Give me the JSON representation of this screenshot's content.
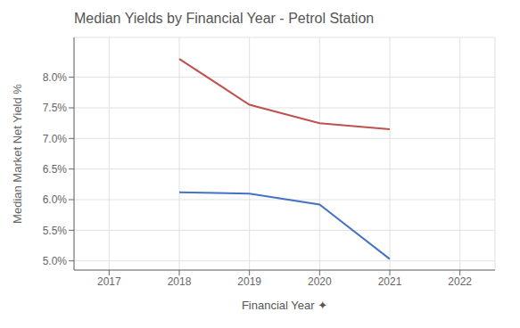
{
  "chart_data": {
    "type": "line",
    "title": "Median Yields by Financial Year - Petrol Station",
    "xlabel": "Financial Year ✦",
    "ylabel": "Median Market Net Yield %",
    "x": [
      2018,
      2019,
      2020,
      2021
    ],
    "series": [
      {
        "color": "#c0504d",
        "values": [
          8.3,
          7.55,
          7.25,
          7.15
        ]
      },
      {
        "color": "#4472c4",
        "values": [
          6.12,
          6.1,
          5.92,
          5.03
        ]
      }
    ],
    "xlim": [
      2016.5,
      2022.5
    ],
    "xticks": [
      2017,
      2018,
      2019,
      2020,
      2021,
      2022
    ],
    "ylim": [
      4.85,
      8.65
    ],
    "yticks": [
      {
        "value": 5.0,
        "label": "5.0%"
      },
      {
        "value": 5.5,
        "label": "5.5%"
      },
      {
        "value": 6.0,
        "label": "6.0%"
      },
      {
        "value": 6.5,
        "label": "6.5%"
      },
      {
        "value": 7.0,
        "label": "7.0%"
      },
      {
        "value": 7.5,
        "label": "7.5%"
      },
      {
        "value": 8.0,
        "label": "8.0%"
      }
    ],
    "grid": true
  }
}
